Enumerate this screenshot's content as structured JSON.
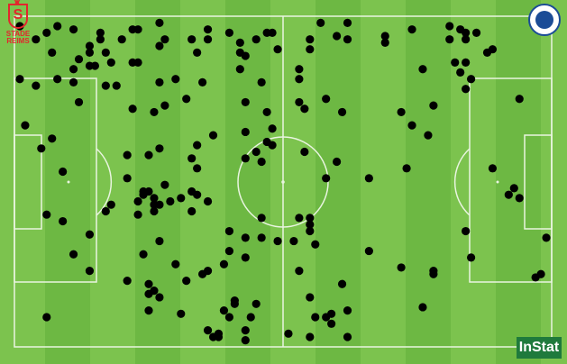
{
  "teams": {
    "home_logo_text": "STADE REIMS",
    "away_logo_text": "MONTPELLIER HÉRAULT SPORT CLUB"
  },
  "branding": {
    "provider": "InStat"
  },
  "colors": {
    "pitch_light": "#7cc34e",
    "pitch_dark": "#6db843",
    "lines": "#e9f5e0",
    "dots": "#000000",
    "reims_red": "#e3262d",
    "montpellier_blue": "#1b4c96"
  },
  "chart_data": {
    "type": "scatter",
    "x_range": [
      0,
      100
    ],
    "y_range": [
      0,
      100
    ],
    "grid": false,
    "background": "football-pitch",
    "points": [
      [
        4,
        7
      ],
      [
        6,
        5
      ],
      [
        8,
        3
      ],
      [
        11,
        4
      ],
      [
        1,
        3
      ],
      [
        7,
        11
      ],
      [
        1,
        19
      ],
      [
        4,
        21
      ],
      [
        8,
        19
      ],
      [
        11,
        20
      ],
      [
        11,
        16
      ],
      [
        12,
        13
      ],
      [
        14,
        11
      ],
      [
        14,
        9
      ],
      [
        16,
        7
      ],
      [
        16,
        5
      ],
      [
        17,
        11
      ],
      [
        18,
        14
      ],
      [
        15,
        15
      ],
      [
        14,
        15
      ],
      [
        17,
        21
      ],
      [
        19,
        21
      ],
      [
        20,
        7
      ],
      [
        22,
        4
      ],
      [
        23,
        4
      ],
      [
        27,
        2
      ],
      [
        27,
        9
      ],
      [
        28,
        7
      ],
      [
        22,
        14
      ],
      [
        23,
        14
      ],
      [
        30,
        19
      ],
      [
        27,
        20
      ],
      [
        35,
        20
      ],
      [
        33,
        7
      ],
      [
        36,
        4
      ],
      [
        36,
        7
      ],
      [
        34,
        11
      ],
      [
        40,
        5
      ],
      [
        42,
        8
      ],
      [
        42,
        11
      ],
      [
        43,
        12
      ],
      [
        42,
        16
      ],
      [
        45,
        7
      ],
      [
        47,
        5
      ],
      [
        48,
        5
      ],
      [
        49,
        10
      ],
      [
        46,
        20
      ],
      [
        53,
        16
      ],
      [
        53,
        19
      ],
      [
        55,
        7
      ],
      [
        55,
        10
      ],
      [
        57,
        2
      ],
      [
        60,
        6
      ],
      [
        62,
        2
      ],
      [
        62,
        7
      ],
      [
        69,
        6
      ],
      [
        69,
        8
      ],
      [
        74,
        4
      ],
      [
        76,
        16
      ],
      [
        81,
        3
      ],
      [
        81,
        7
      ],
      [
        83,
        4
      ],
      [
        84,
        5
      ],
      [
        84,
        7
      ],
      [
        86,
        5
      ],
      [
        88,
        11
      ],
      [
        89,
        10
      ],
      [
        82,
        14
      ],
      [
        84,
        14
      ],
      [
        83,
        17
      ],
      [
        85,
        19
      ],
      [
        84,
        22
      ],
      [
        94,
        25
      ],
      [
        2,
        33
      ],
      [
        5,
        40
      ],
      [
        7,
        37
      ],
      [
        12,
        26
      ],
      [
        22,
        28
      ],
      [
        26,
        29
      ],
      [
        28,
        27
      ],
      [
        32,
        25
      ],
      [
        37,
        36
      ],
      [
        34,
        39
      ],
      [
        43,
        26
      ],
      [
        43,
        35
      ],
      [
        47,
        29
      ],
      [
        48,
        34
      ],
      [
        47,
        38
      ],
      [
        48,
        39
      ],
      [
        45,
        41
      ],
      [
        53,
        26
      ],
      [
        54,
        28
      ],
      [
        58,
        25
      ],
      [
        54,
        41
      ],
      [
        61,
        29
      ],
      [
        72,
        29
      ],
      [
        74,
        33
      ],
      [
        77,
        36
      ],
      [
        78,
        27
      ],
      [
        9,
        47
      ],
      [
        21,
        42
      ],
      [
        21,
        49
      ],
      [
        27,
        40
      ],
      [
        25,
        42
      ],
      [
        34,
        46
      ],
      [
        33,
        43
      ],
      [
        43,
        43
      ],
      [
        46,
        44
      ],
      [
        60,
        44
      ],
      [
        58,
        49
      ],
      [
        66,
        49
      ],
      [
        73,
        46
      ],
      [
        89,
        46
      ],
      [
        93,
        52
      ],
      [
        92,
        54
      ],
      [
        94,
        55
      ],
      [
        24,
        53
      ],
      [
        24,
        54
      ],
      [
        25,
        53
      ],
      [
        26,
        55
      ],
      [
        28,
        51
      ],
      [
        31,
        55
      ],
      [
        29,
        56
      ],
      [
        33,
        53
      ],
      [
        34,
        54
      ],
      [
        36,
        56
      ],
      [
        33,
        59
      ],
      [
        26,
        57
      ],
      [
        23,
        56
      ],
      [
        27,
        57
      ],
      [
        26,
        59
      ],
      [
        18,
        57
      ],
      [
        17,
        59
      ],
      [
        23,
        60
      ],
      [
        6,
        60
      ],
      [
        9,
        62
      ],
      [
        46,
        61
      ],
      [
        53,
        61
      ],
      [
        55,
        61
      ],
      [
        55,
        63
      ],
      [
        55,
        65
      ],
      [
        56,
        69
      ],
      [
        14,
        66
      ],
      [
        11,
        72
      ],
      [
        24,
        72
      ],
      [
        27,
        68
      ],
      [
        40,
        65
      ],
      [
        40,
        71
      ],
      [
        43,
        67
      ],
      [
        46,
        67
      ],
      [
        49,
        68
      ],
      [
        43,
        73
      ],
      [
        52,
        68
      ],
      [
        66,
        71
      ],
      [
        84,
        65
      ],
      [
        85,
        73
      ],
      [
        99,
        67
      ],
      [
        72,
        76
      ],
      [
        78,
        78
      ],
      [
        78,
        77
      ],
      [
        97,
        79
      ],
      [
        98,
        78
      ],
      [
        14,
        77
      ],
      [
        21,
        80
      ],
      [
        25,
        81
      ],
      [
        26,
        83
      ],
      [
        27,
        85
      ],
      [
        25,
        84
      ],
      [
        30,
        75
      ],
      [
        32,
        80
      ],
      [
        35,
        78
      ],
      [
        36,
        77
      ],
      [
        39,
        75
      ],
      [
        53,
        77
      ],
      [
        61,
        81
      ],
      [
        55,
        85
      ],
      [
        31,
        90
      ],
      [
        39,
        89
      ],
      [
        41,
        86
      ],
      [
        41,
        87
      ],
      [
        45,
        87
      ],
      [
        44,
        91
      ],
      [
        40,
        91
      ],
      [
        36,
        95
      ],
      [
        37,
        97
      ],
      [
        38,
        96
      ],
      [
        38,
        97
      ],
      [
        43,
        95
      ],
      [
        43,
        98
      ],
      [
        51,
        96
      ],
      [
        55,
        97
      ],
      [
        58,
        91
      ],
      [
        56,
        91
      ],
      [
        59,
        90
      ],
      [
        62,
        89
      ],
      [
        59,
        93
      ],
      [
        62,
        97
      ],
      [
        76,
        88
      ],
      [
        6,
        91
      ],
      [
        25,
        89
      ]
    ]
  }
}
